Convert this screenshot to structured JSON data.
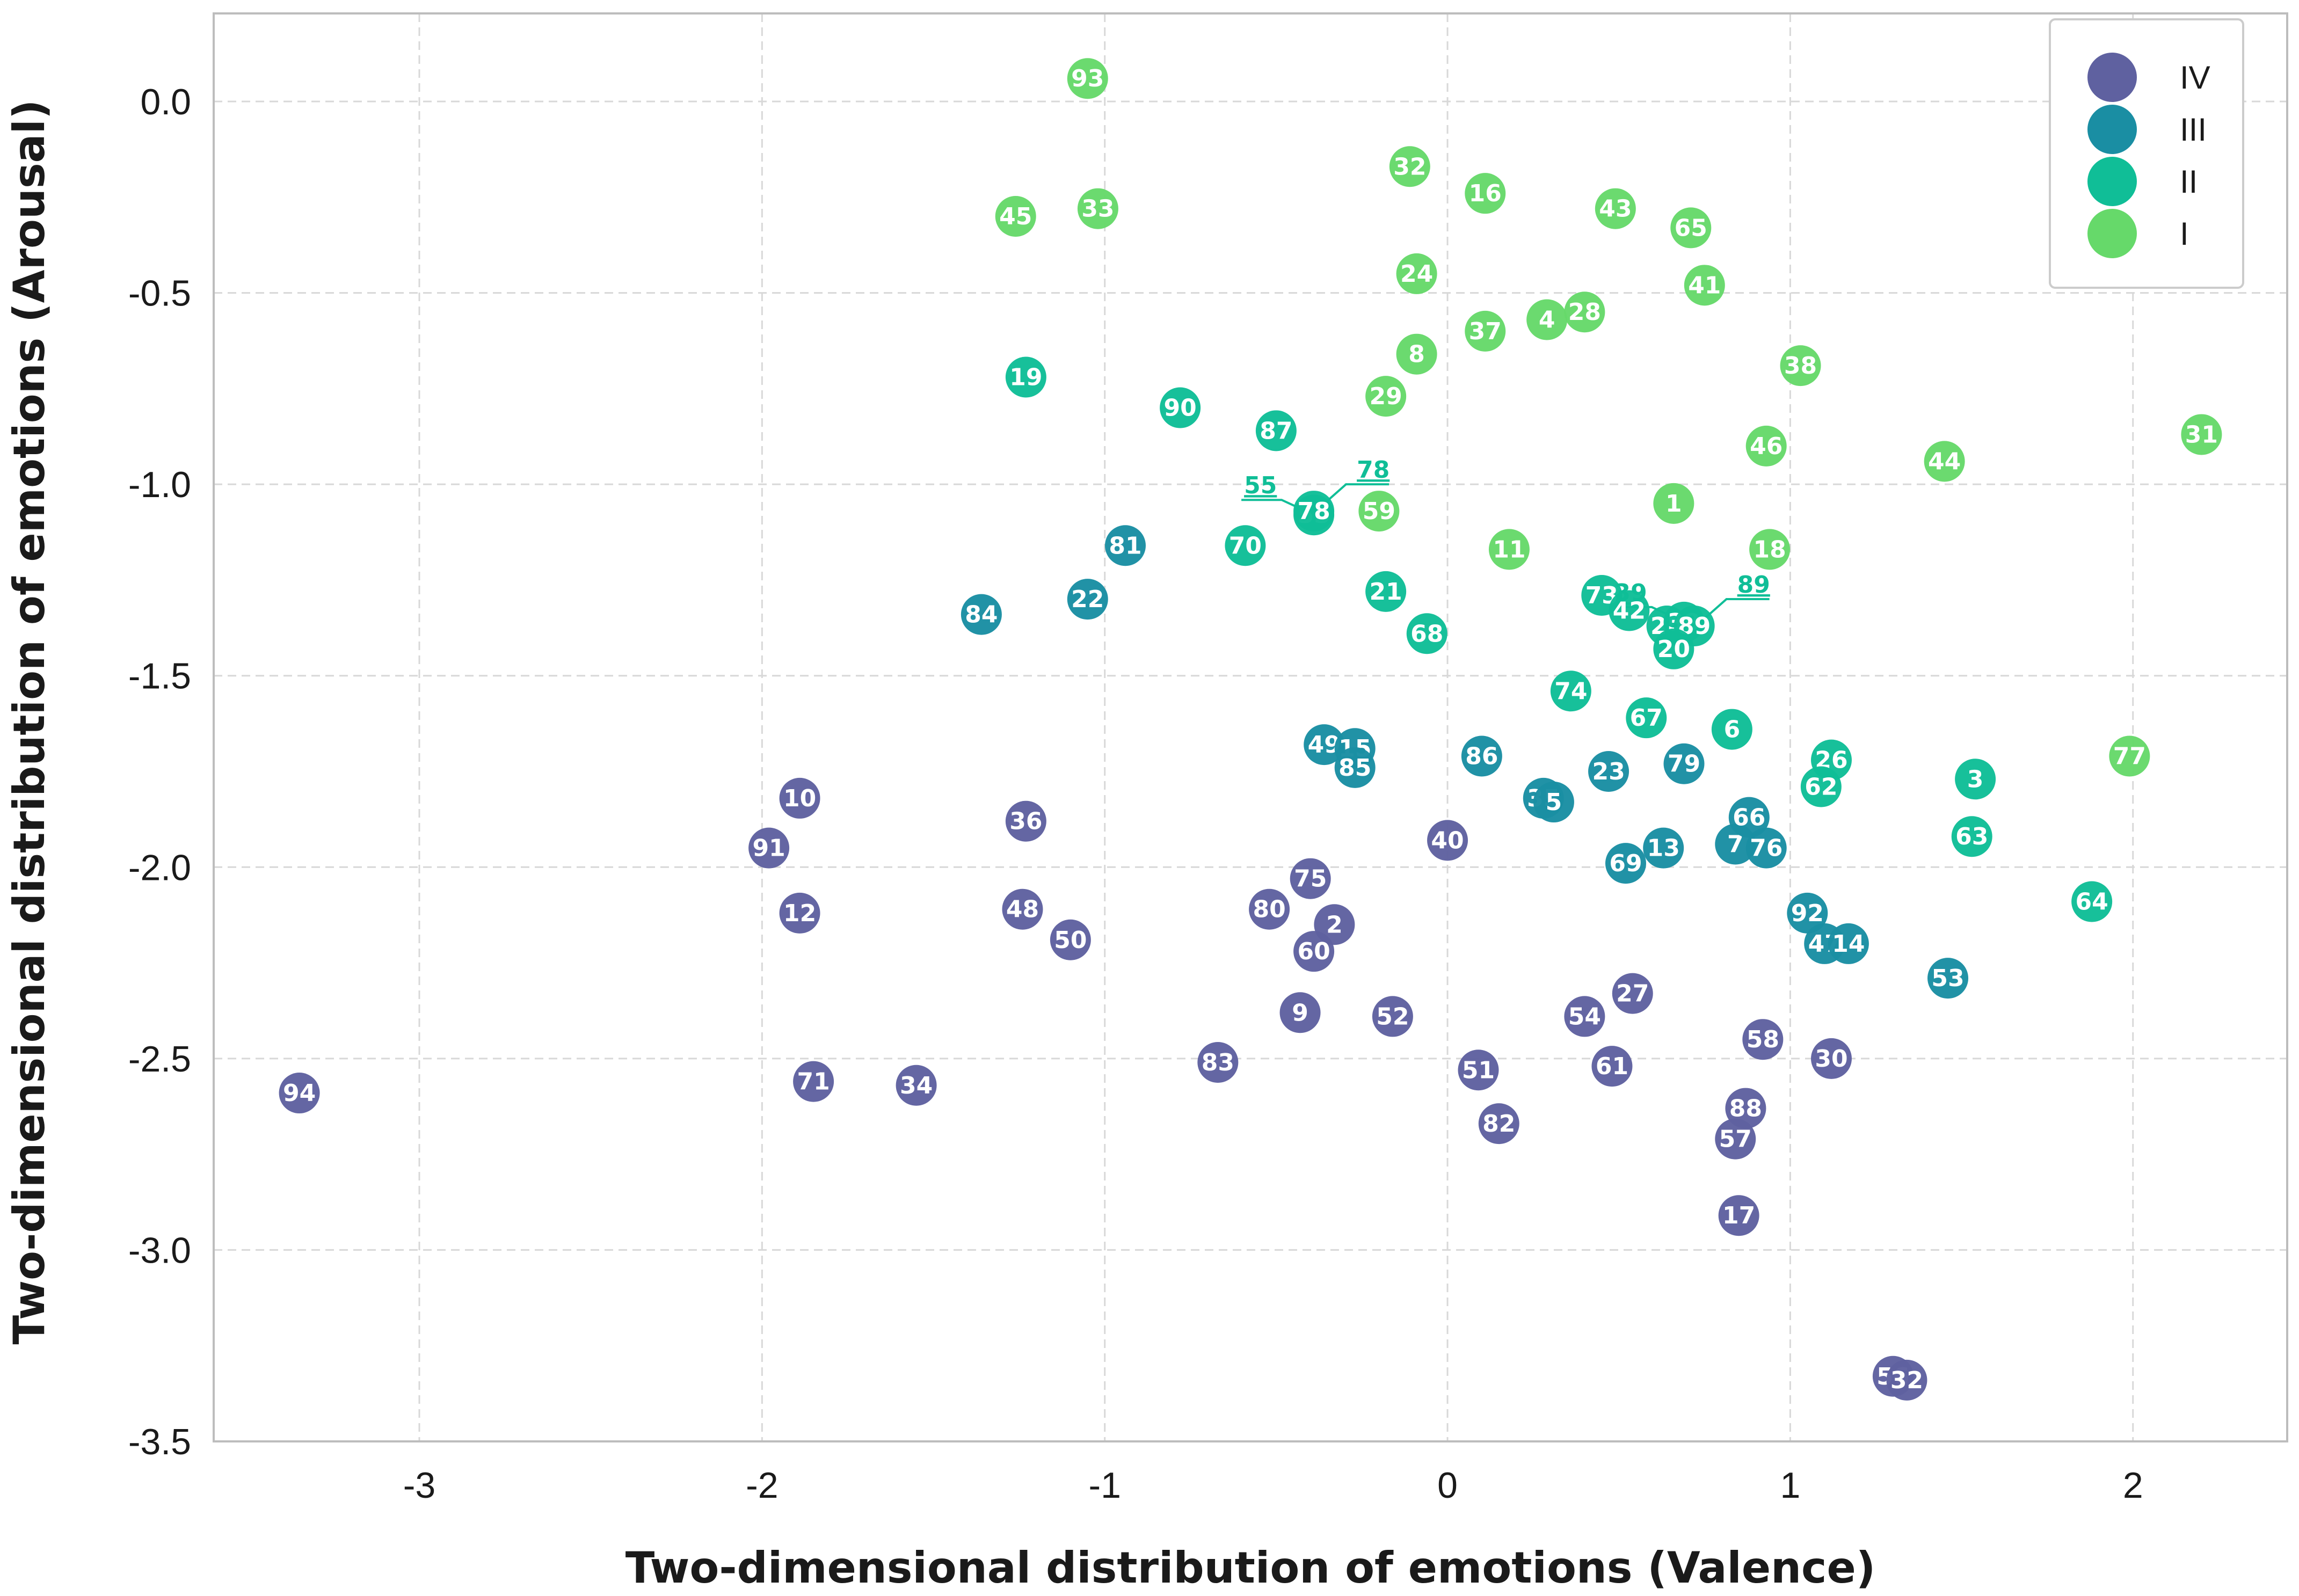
{
  "colors": {
    "IV": "#5f61a0",
    "III": "#1a8ea3",
    "II": "#10be97",
    "I": "#66d96a",
    "grid": "#d8d8d8",
    "frame": "#bdbdbd"
  },
  "chart_data": {
    "type": "scatter",
    "title": "",
    "xlabel": "Two-dimensional distribution of emotions (Valence)",
    "ylabel": "Two-dimensional distribution of emotions (Arousal)",
    "xlim": [
      -3.6,
      2.45
    ],
    "ylim": [
      -3.5,
      0.23
    ],
    "xticks": [
      -3,
      -2,
      -1,
      0,
      1,
      2
    ],
    "xtick_labels": [
      "-3",
      "-2",
      "-1",
      "0",
      "1",
      "2"
    ],
    "yticks": [
      0.0,
      -0.5,
      -1.0,
      -1.5,
      -2.0,
      -2.5,
      -3.0,
      -3.5
    ],
    "ytick_labels": [
      "0.0",
      "-0.5",
      "-1.0",
      "-1.5",
      "-2.0",
      "-2.5",
      "-3.0",
      "-3.5"
    ],
    "grid": true,
    "legend": {
      "position": "top-right",
      "entries": [
        "IV",
        "III",
        "II",
        "I"
      ]
    },
    "series": [
      {
        "name": "IV",
        "points": [
          {
            "label": "94",
            "x": -3.35,
            "y": -2.59
          },
          {
            "label": "10",
            "x": -1.89,
            "y": -1.82
          },
          {
            "label": "91",
            "x": -1.98,
            "y": -1.95
          },
          {
            "label": "12",
            "x": -1.89,
            "y": -2.12
          },
          {
            "label": "71",
            "x": -1.85,
            "y": -2.56
          },
          {
            "label": "34",
            "x": -1.55,
            "y": -2.57
          },
          {
            "label": "36",
            "x": -1.23,
            "y": -1.88
          },
          {
            "label": "48",
            "x": -1.24,
            "y": -2.11
          },
          {
            "label": "50",
            "x": -1.1,
            "y": -2.19
          },
          {
            "label": "83",
            "x": -0.67,
            "y": -2.51
          },
          {
            "label": "80",
            "x": -0.52,
            "y": -2.11
          },
          {
            "label": "75",
            "x": -0.4,
            "y": -2.03
          },
          {
            "label": "2",
            "x": -0.33,
            "y": -2.15
          },
          {
            "label": "60",
            "x": -0.39,
            "y": -2.22
          },
          {
            "label": "9",
            "x": -0.43,
            "y": -2.38
          },
          {
            "label": "52",
            "x": -0.16,
            "y": -2.39
          },
          {
            "label": "40",
            "x": 0.0,
            "y": -1.93
          },
          {
            "label": "51",
            "x": 0.09,
            "y": -2.53
          },
          {
            "label": "82",
            "x": 0.15,
            "y": -2.67
          },
          {
            "label": "54",
            "x": 0.4,
            "y": -2.39
          },
          {
            "label": "61",
            "x": 0.48,
            "y": -2.52
          },
          {
            "label": "27",
            "x": 0.54,
            "y": -2.33
          },
          {
            "label": "58",
            "x": 0.92,
            "y": -2.45
          },
          {
            "label": "88",
            "x": 0.87,
            "y": -2.63
          },
          {
            "label": "57",
            "x": 0.84,
            "y": -2.71
          },
          {
            "label": "17",
            "x": 0.85,
            "y": -2.91
          },
          {
            "label": "30",
            "x": 1.12,
            "y": -2.5
          },
          {
            "label": "56",
            "x": 1.3,
            "y": -3.33
          },
          {
            "label": "32",
            "x": 1.34,
            "y": -3.34
          }
        ]
      },
      {
        "name": "III",
        "points": [
          {
            "label": "84",
            "x": -1.36,
            "y": -1.34
          },
          {
            "label": "22",
            "x": -1.05,
            "y": -1.3
          },
          {
            "label": "81",
            "x": -0.94,
            "y": -1.16
          },
          {
            "label": "49",
            "x": -0.36,
            "y": -1.68
          },
          {
            "label": "15",
            "x": -0.27,
            "y": -1.69
          },
          {
            "label": "85",
            "x": -0.27,
            "y": -1.74
          },
          {
            "label": "86",
            "x": 0.1,
            "y": -1.71
          },
          {
            "label": "35",
            "x": 0.28,
            "y": -1.82
          },
          {
            "label": "5",
            "x": 0.31,
            "y": -1.83
          },
          {
            "label": "23",
            "x": 0.47,
            "y": -1.75
          },
          {
            "label": "79",
            "x": 0.69,
            "y": -1.73
          },
          {
            "label": "69",
            "x": 0.52,
            "y": -1.99
          },
          {
            "label": "13",
            "x": 0.63,
            "y": -1.95
          },
          {
            "label": "7",
            "x": 0.84,
            "y": -1.94
          },
          {
            "label": "76",
            "x": 0.93,
            "y": -1.95
          },
          {
            "label": "66",
            "x": 0.88,
            "y": -1.87
          },
          {
            "label": "92",
            "x": 1.05,
            "y": -2.12
          },
          {
            "label": "47",
            "x": 1.1,
            "y": -2.2
          },
          {
            "label": "14",
            "x": 1.17,
            "y": -2.2
          },
          {
            "label": "53",
            "x": 1.46,
            "y": -2.29
          }
        ]
      },
      {
        "name": "II",
        "points": [
          {
            "label": "19",
            "x": -1.23,
            "y": -0.72
          },
          {
            "label": "90",
            "x": -0.78,
            "y": -0.8
          },
          {
            "label": "87",
            "x": -0.5,
            "y": -0.86
          },
          {
            "label": "55",
            "x": -0.39,
            "y": -1.08
          },
          {
            "label": "78",
            "x": -0.39,
            "y": -1.07
          },
          {
            "label": "70",
            "x": -0.59,
            "y": -1.16
          },
          {
            "label": "21",
            "x": -0.18,
            "y": -1.28
          },
          {
            "label": "68",
            "x": -0.06,
            "y": -1.39
          },
          {
            "label": "73",
            "x": 0.45,
            "y": -1.29
          },
          {
            "label": "42",
            "x": 0.53,
            "y": -1.33
          },
          {
            "label": "25",
            "x": 0.64,
            "y": -1.37
          },
          {
            "label": "39",
            "x": 0.69,
            "y": -1.36
          },
          {
            "label": "89",
            "x": 0.72,
            "y": -1.37
          },
          {
            "label": "20",
            "x": 0.66,
            "y": -1.43
          },
          {
            "label": "74",
            "x": 0.36,
            "y": -1.54
          },
          {
            "label": "67",
            "x": 0.58,
            "y": -1.61
          },
          {
            "label": "6",
            "x": 0.83,
            "y": -1.64
          },
          {
            "label": "26",
            "x": 1.12,
            "y": -1.72
          },
          {
            "label": "62",
            "x": 1.09,
            "y": -1.79
          },
          {
            "label": "3",
            "x": 1.54,
            "y": -1.77
          },
          {
            "label": "63",
            "x": 1.53,
            "y": -1.92
          },
          {
            "label": "64",
            "x": 1.88,
            "y": -2.09
          }
        ]
      },
      {
        "name": "I",
        "points": [
          {
            "label": "93",
            "x": -1.05,
            "y": 0.06
          },
          {
            "label": "45",
            "x": -1.26,
            "y": -0.3
          },
          {
            "label": "33",
            "x": -1.02,
            "y": -0.28
          },
          {
            "label": "32",
            "x": -0.11,
            "y": -0.17
          },
          {
            "label": "16",
            "x": 0.11,
            "y": -0.24
          },
          {
            "label": "43",
            "x": 0.49,
            "y": -0.28
          },
          {
            "label": "65",
            "x": 0.71,
            "y": -0.33
          },
          {
            "label": "24",
            "x": -0.09,
            "y": -0.45
          },
          {
            "label": "41",
            "x": 0.75,
            "y": -0.48
          },
          {
            "label": "4",
            "x": 0.29,
            "y": -0.57
          },
          {
            "label": "28",
            "x": 0.4,
            "y": -0.55
          },
          {
            "label": "37",
            "x": 0.11,
            "y": -0.6
          },
          {
            "label": "8",
            "x": -0.09,
            "y": -0.66
          },
          {
            "label": "38",
            "x": 1.03,
            "y": -0.69
          },
          {
            "label": "29",
            "x": -0.18,
            "y": -0.77
          },
          {
            "label": "46",
            "x": 0.93,
            "y": -0.9
          },
          {
            "label": "44",
            "x": 1.45,
            "y": -0.94
          },
          {
            "label": "31",
            "x": 2.2,
            "y": -0.87
          },
          {
            "label": "1",
            "x": 0.66,
            "y": -1.05
          },
          {
            "label": "59",
            "x": -0.2,
            "y": -1.07
          },
          {
            "label": "11",
            "x": 0.18,
            "y": -1.17
          },
          {
            "label": "18",
            "x": 0.94,
            "y": -1.17
          },
          {
            "label": "77",
            "x": 1.99,
            "y": -1.71
          }
        ]
      }
    ],
    "annotations": [
      {
        "label": "55",
        "series": "II",
        "x": -0.39,
        "y": -1.08,
        "side": "left"
      },
      {
        "label": "78",
        "series": "II",
        "x": -0.39,
        "y": -1.07,
        "side": "right"
      },
      {
        "label": "39",
        "series": "II",
        "x": 0.69,
        "y": -1.36,
        "side": "left"
      },
      {
        "label": "89",
        "series": "II",
        "x": 0.72,
        "y": -1.37,
        "side": "right"
      }
    ]
  }
}
